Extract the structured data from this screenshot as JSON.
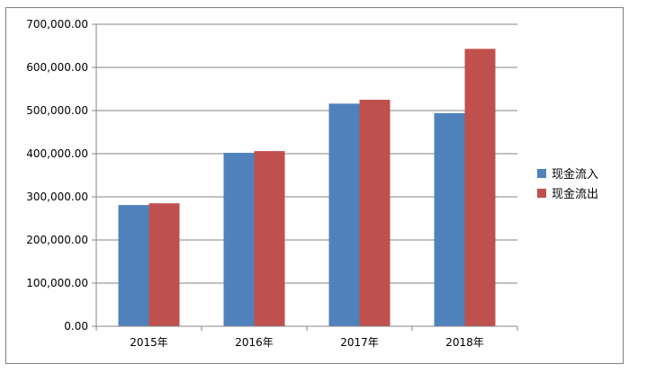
{
  "chart_data": {
    "type": "bar",
    "categories": [
      "2015年",
      "2016年",
      "2017年",
      "2018年"
    ],
    "series": [
      {
        "name": "现金流入",
        "color": "#4F81BD",
        "values": [
          281000,
          402000,
          516000,
          494000
        ]
      },
      {
        "name": "现金流出",
        "color": "#C0504D",
        "values": [
          285000,
          406000,
          525000,
          643000
        ]
      }
    ],
    "ylim": [
      0,
      700000
    ],
    "yticks": [
      0,
      100000,
      200000,
      300000,
      400000,
      500000,
      600000,
      700000
    ],
    "ytick_labels": [
      "0.00",
      "100,000.00",
      "200,000.00",
      "300,000.00",
      "400,000.00",
      "500,000.00",
      "600,000.00",
      "700,000.00"
    ],
    "grid": true,
    "legend_position": "right"
  }
}
